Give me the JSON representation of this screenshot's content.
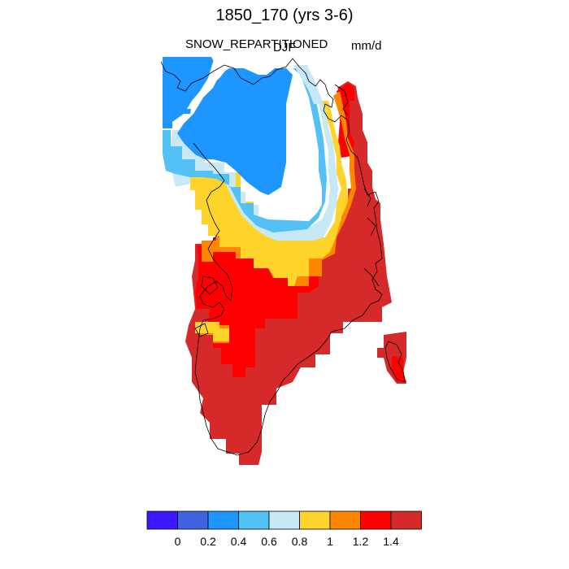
{
  "header": {
    "title": "1850_170 (yrs 3-6)",
    "left_label": "SNOW_REPARTITIONED",
    "center_label": "DJF",
    "right_label": "mm/d"
  },
  "colors": {
    "c1": "#3f17ff",
    "c2": "#3f63e0",
    "c3": "#1e96ff",
    "c4": "#53c1f5",
    "c5": "#c7e8f5",
    "c6": "#fed42b",
    "c7": "#ff8700",
    "c8": "#ff0000",
    "c9": "#d62a2a",
    "coast": "#000000",
    "background": "#ffffff"
  },
  "map": {
    "region": "Greenland",
    "projection": "polar stereographic",
    "field": "SNOW_REPARTITIONED",
    "units": "mm/d",
    "season": "DJF",
    "pattern_note": "Low values (0.2-0.8) over northern interior/north coast; high values (>1.4) along southern and eastern margins"
  },
  "colorbar": {
    "levels": [
      "0",
      "0.2",
      "0.4",
      "0.6",
      "0.8",
      "1",
      "1.2",
      "1.4"
    ],
    "bin_color_keys": [
      "c1",
      "c2",
      "c3",
      "c4",
      "c5",
      "c6",
      "c7",
      "c8",
      "c9"
    ]
  }
}
